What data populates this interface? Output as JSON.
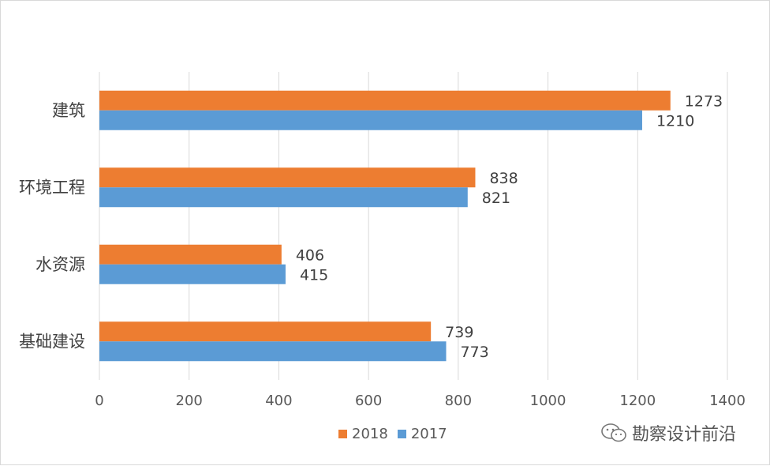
{
  "chart_data": {
    "type": "bar",
    "orientation": "horizontal",
    "categories": [
      "建筑",
      "环境工程",
      "水资源",
      "基础建设"
    ],
    "series": [
      {
        "name": "2018",
        "values": [
          1273,
          838,
          406,
          739
        ],
        "color": "#ED7D31"
      },
      {
        "name": "2017",
        "values": [
          1210,
          821,
          415,
          773
        ],
        "color": "#5B9BD5"
      }
    ],
    "xlim": [
      0,
      1400
    ],
    "xticks": [
      0,
      200,
      400,
      600,
      800,
      1000,
      1200,
      1400
    ],
    "grid": true,
    "legend_position": "bottom"
  },
  "legend": {
    "items": [
      {
        "label": "2018",
        "color": "#ED7D31"
      },
      {
        "label": "2017",
        "color": "#5B9BD5"
      }
    ]
  },
  "watermark": {
    "text": "勘察设计前沿",
    "icon": "wechat-icon"
  }
}
